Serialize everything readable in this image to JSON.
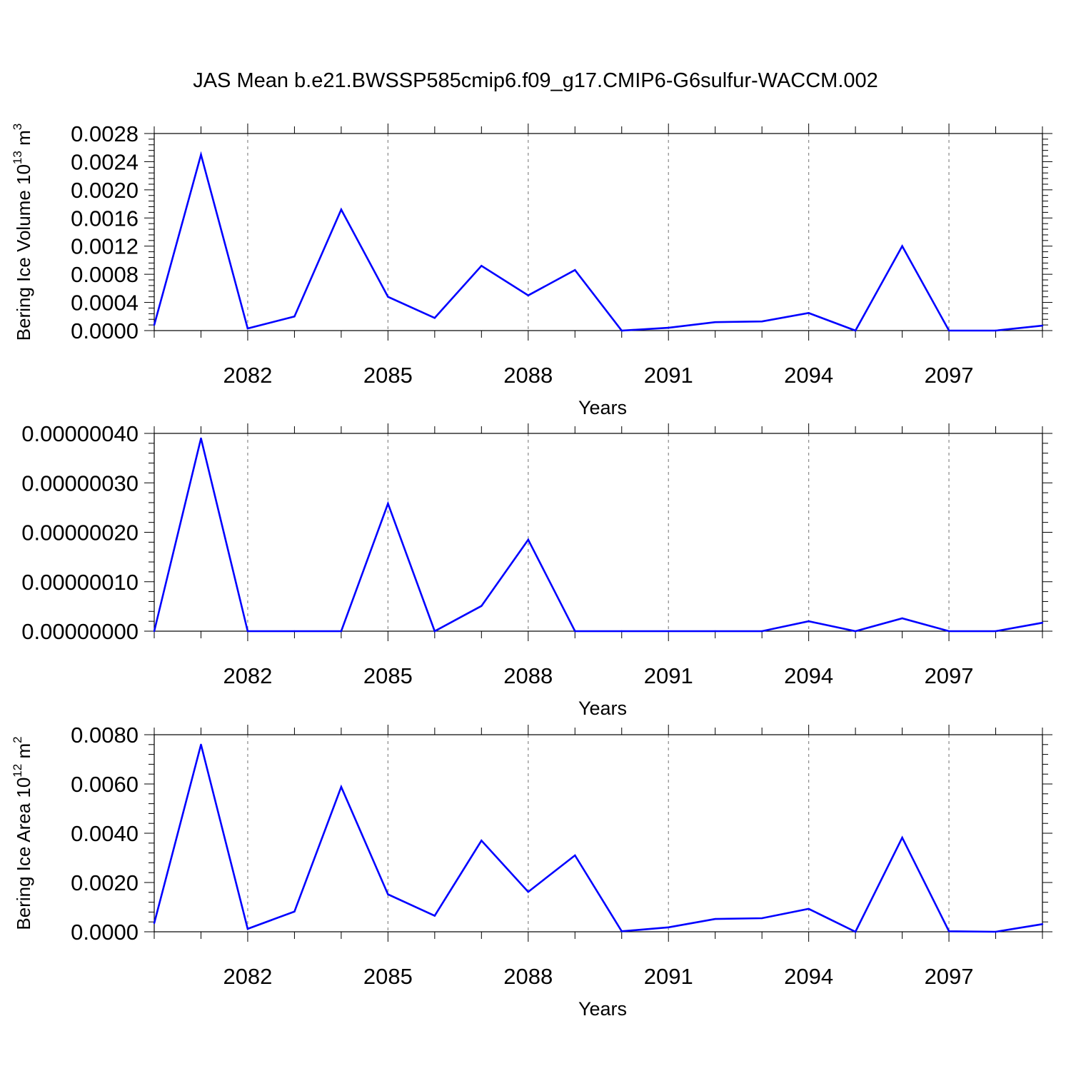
{
  "figure": {
    "title": "JAS Mean b.e21.BWSSP585cmip6.f09_g17.CMIP6-G6sulfur-WACCM.002"
  },
  "colors": {
    "line": "#0000ff",
    "axes": "#000000",
    "grid": "#888888"
  },
  "chart_data": [
    {
      "type": "line",
      "xlabel": "Years",
      "ylabel_main": "Bering Ice Volume 10",
      "ylabel_exp": "13",
      "ylabel_unit": " m",
      "ylabel_unit_exp": "3",
      "xlim": [
        2080,
        2099
      ],
      "ylim": [
        0,
        0.0028
      ],
      "yticks": [
        0.0,
        0.0004,
        0.0008,
        0.0012,
        0.0016,
        0.002,
        0.0024,
        0.0028
      ],
      "ytick_labels": [
        "0.0000",
        "0.0004",
        "0.0008",
        "0.0012",
        "0.0016",
        "0.0020",
        "0.0024",
        "0.0028"
      ],
      "xticks": [
        2082,
        2085,
        2088,
        2091,
        2094,
        2097
      ],
      "xtick_labels": [
        "2082",
        "2085",
        "2088",
        "2091",
        "2094",
        "2097"
      ],
      "grid": "vertical dashed at labeled years",
      "x": [
        2080,
        2081,
        2082,
        2083,
        2084,
        2085,
        2086,
        2087,
        2088,
        2089,
        2090,
        2091,
        2092,
        2093,
        2094,
        2095,
        2096,
        2097,
        2098,
        2099
      ],
      "y": [
        8e-05,
        0.0025,
        3e-05,
        0.0002,
        0.00172,
        0.00048,
        0.00018,
        0.00092,
        0.0005,
        0.00086,
        0.0,
        4e-05,
        0.00012,
        0.00013,
        0.00025,
        0.0,
        0.0012,
        0.0,
        0.0,
        7e-05
      ]
    },
    {
      "type": "line",
      "xlabel": "Years",
      "xlim": [
        2080,
        2099
      ],
      "ylim": [
        0,
        4e-07
      ],
      "yticks": [
        0.0,
        1e-07,
        2e-07,
        3e-07,
        4e-07
      ],
      "ytick_labels": [
        "0.00000000",
        "0.00000010",
        "0.00000020",
        "0.00000030",
        "0.00000040"
      ],
      "xticks": [
        2082,
        2085,
        2088,
        2091,
        2094,
        2097
      ],
      "xtick_labels": [
        "2082",
        "2085",
        "2088",
        "2091",
        "2094",
        "2097"
      ],
      "grid": "vertical dashed at labeled years",
      "x": [
        2080,
        2081,
        2082,
        2083,
        2084,
        2085,
        2086,
        2087,
        2088,
        2089,
        2090,
        2091,
        2092,
        2093,
        2094,
        2095,
        2096,
        2097,
        2098,
        2099
      ],
      "y": [
        0.0,
        3.9e-07,
        0.0,
        0.0,
        2e-10,
        2.58e-07,
        0.0,
        5.1e-08,
        1.85e-07,
        0.0,
        0.0,
        0.0,
        0.0,
        0.0,
        2e-08,
        0.0,
        2.6e-08,
        0.0,
        0.0,
        1.7e-08
      ]
    },
    {
      "type": "line",
      "xlabel": "Years",
      "ylabel_main": "Bering Ice Area 10",
      "ylabel_exp": "12",
      "ylabel_unit": " m",
      "ylabel_unit_exp": "2",
      "xlim": [
        2080,
        2099
      ],
      "ylim": [
        0,
        0.008
      ],
      "yticks": [
        0.0,
        0.002,
        0.004,
        0.006,
        0.008
      ],
      "ytick_labels": [
        "0.0000",
        "0.0020",
        "0.0040",
        "0.0060",
        "0.0080"
      ],
      "xticks": [
        2082,
        2085,
        2088,
        2091,
        2094,
        2097
      ],
      "xtick_labels": [
        "2082",
        "2085",
        "2088",
        "2091",
        "2094",
        "2097"
      ],
      "grid": "vertical dashed at labeled years",
      "x": [
        2080,
        2081,
        2082,
        2083,
        2084,
        2085,
        2086,
        2087,
        2088,
        2089,
        2090,
        2091,
        2092,
        2093,
        2094,
        2095,
        2096,
        2097,
        2098,
        2099
      ],
      "y": [
        0.00035,
        0.0076,
        0.00012,
        0.00082,
        0.00588,
        0.00152,
        0.00065,
        0.0037,
        0.00162,
        0.0031,
        2e-05,
        0.00018,
        0.00052,
        0.00055,
        0.00093,
        0.0,
        0.00382,
        2e-05,
        0.0,
        0.00031
      ]
    }
  ]
}
